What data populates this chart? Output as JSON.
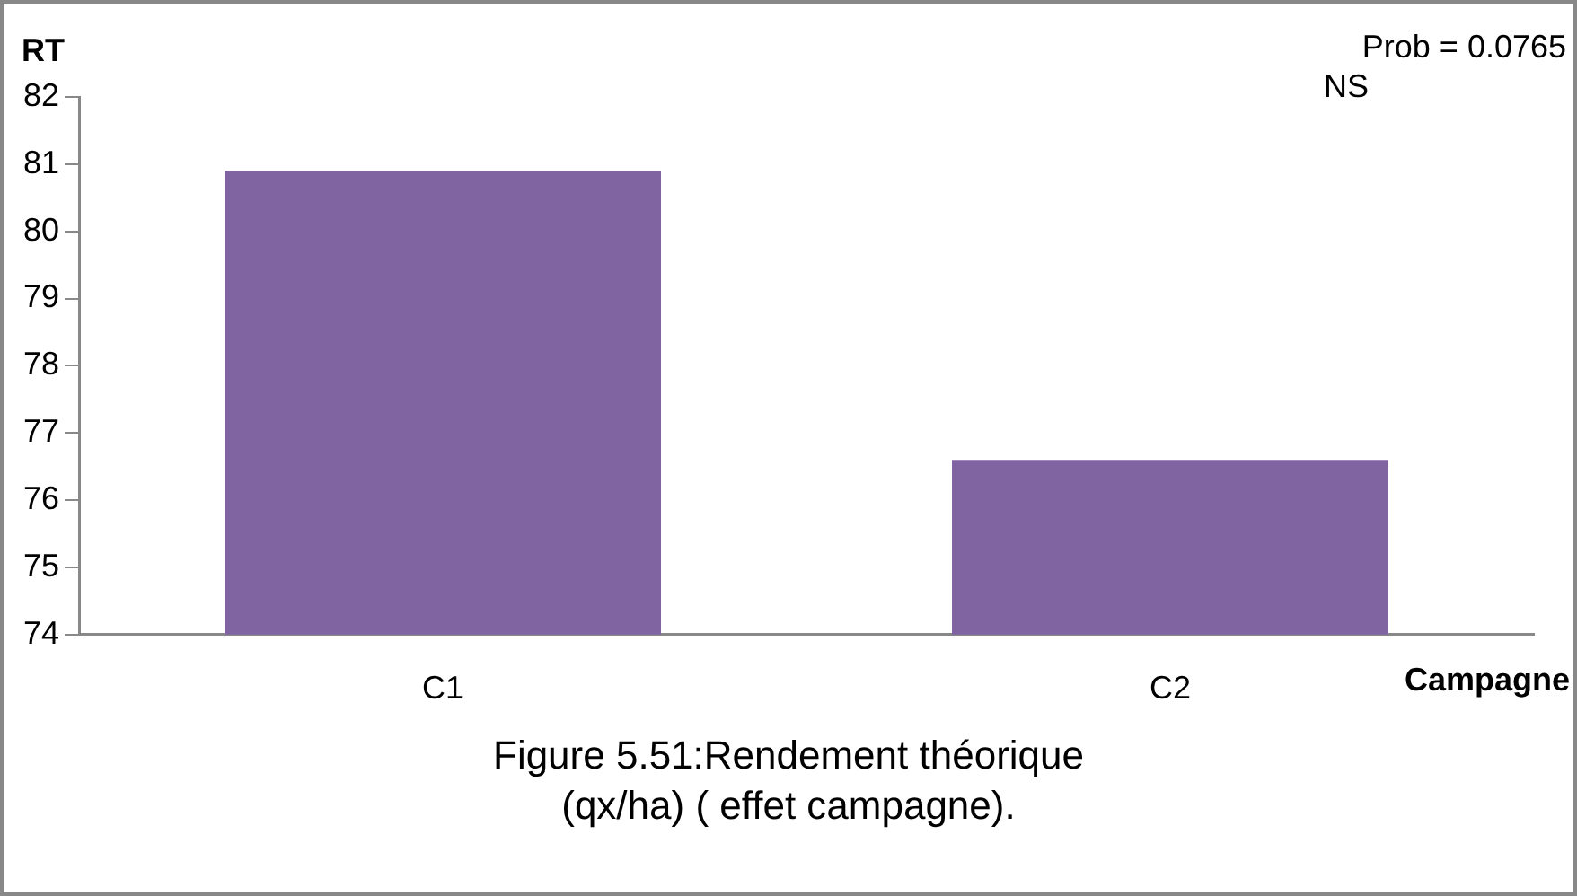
{
  "chart_data": {
    "type": "bar",
    "title": "Figure 5.51:Rendement théorique (qx/ha) ( effet campagne).",
    "xlabel": "Campagne",
    "ylabel": "RT",
    "categories": [
      "C1",
      "C2"
    ],
    "series": [
      {
        "color": "#8064a2",
        "values": [
          80.9,
          76.6
        ]
      }
    ],
    "ylim": [
      74,
      82
    ],
    "yticks": [
      74,
      75,
      76,
      77,
      78,
      79,
      80,
      81,
      82
    ],
    "grid": false,
    "legend": false,
    "annotations": [
      "Prob = 0.0765",
      "NS"
    ]
  }
}
